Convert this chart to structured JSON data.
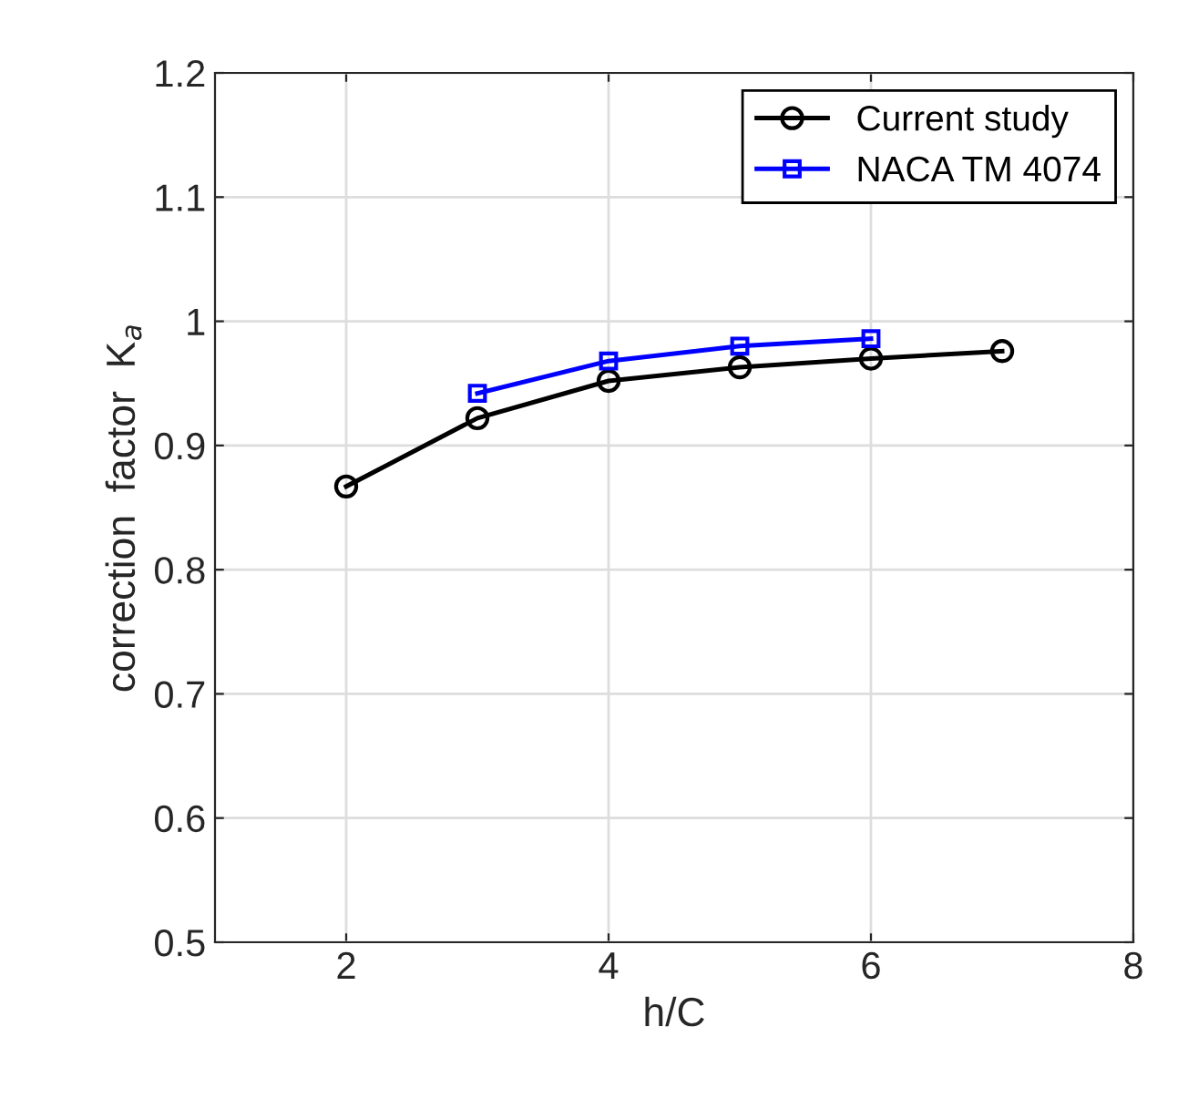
{
  "chart_data": {
    "type": "line",
    "xlabel": "h/C",
    "ylabel": "correction  factor  K$_{a}$",
    "xlim": [
      1,
      8
    ],
    "xticks": [
      2,
      4,
      6,
      8
    ],
    "ylim": [
      0.5,
      1.2
    ],
    "yticks": [
      0.5,
      0.6,
      0.7,
      0.8,
      0.9,
      1,
      1.1,
      1.2
    ],
    "grid": true,
    "legend": "top right",
    "series": [
      {
        "name": "Current study",
        "color": "#000000",
        "marker": "circle",
        "x": [
          2,
          3,
          4,
          5,
          6,
          7
        ],
        "values": [
          0.867,
          0.922,
          0.952,
          0.963,
          0.97,
          0.976
        ]
      },
      {
        "name": "NACA TM 4074",
        "color": "#0000ff",
        "marker": "square",
        "x": [
          3,
          4,
          5,
          6
        ],
        "values": [
          0.942,
          0.968,
          0.98,
          0.986
        ]
      }
    ]
  }
}
